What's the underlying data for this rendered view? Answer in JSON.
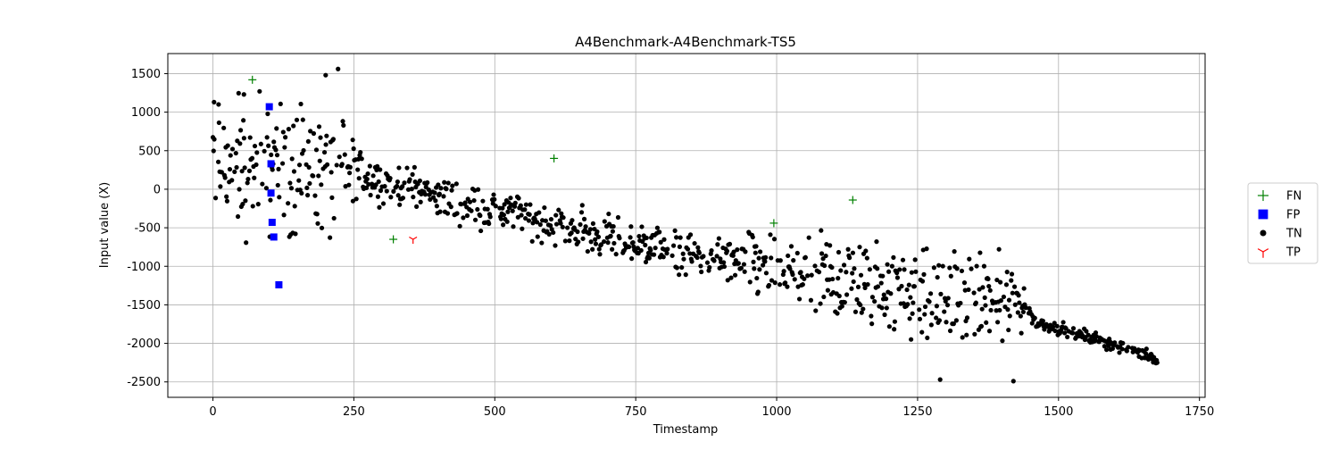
{
  "chart_data": {
    "type": "scatter",
    "title": "A4Benchmark-A4Benchmark-TS5",
    "xlabel": "Timestamp",
    "ylabel": "Input value (X)",
    "xlim": [
      -80,
      1760
    ],
    "ylim": [
      -2700,
      1760
    ],
    "xticks": [
      0,
      250,
      500,
      750,
      1000,
      1250,
      1500,
      1750
    ],
    "yticks": [
      -2500,
      -2000,
      -1500,
      -1000,
      -500,
      0,
      500,
      1000,
      1500
    ],
    "grid": true,
    "legend_position": "right",
    "series": [
      {
        "name": "FN",
        "marker": "plus",
        "color": "#008000",
        "points": [
          [
            70,
            1420
          ],
          [
            320,
            -650
          ],
          [
            605,
            400
          ],
          [
            995,
            -440
          ],
          [
            1135,
            -140
          ]
        ]
      },
      {
        "name": "FP",
        "marker": "square",
        "color": "#0000ff",
        "points": [
          [
            100,
            1070
          ],
          [
            103,
            330
          ],
          [
            103,
            -50
          ],
          [
            105,
            -430
          ],
          [
            108,
            -620
          ],
          [
            117,
            -1240
          ]
        ]
      },
      {
        "name": "TN",
        "marker": "dot",
        "color": "#000000",
        "generated": true,
        "trend": [
          [
            0,
            300
          ],
          [
            250,
            200
          ],
          [
            500,
            -250
          ],
          [
            750,
            -720
          ],
          [
            1000,
            -1050
          ],
          [
            1250,
            -1350
          ],
          [
            1440,
            -1500
          ],
          [
            1460,
            -1720
          ],
          [
            1675,
            -2180
          ]
        ],
        "points": [
          [
            2,
            1130
          ],
          [
            10,
            1100
          ],
          [
            55,
            1230
          ],
          [
            200,
            1480
          ],
          [
            222,
            1560
          ],
          [
            248,
            640
          ],
          [
            1290,
            -2470
          ],
          [
            1420,
            -2490
          ],
          [
            1675,
            -2250
          ]
        ]
      },
      {
        "name": "TP",
        "marker": "tri_down",
        "color": "#ff0000",
        "points": [
          [
            355,
            -650
          ]
        ]
      }
    ]
  }
}
